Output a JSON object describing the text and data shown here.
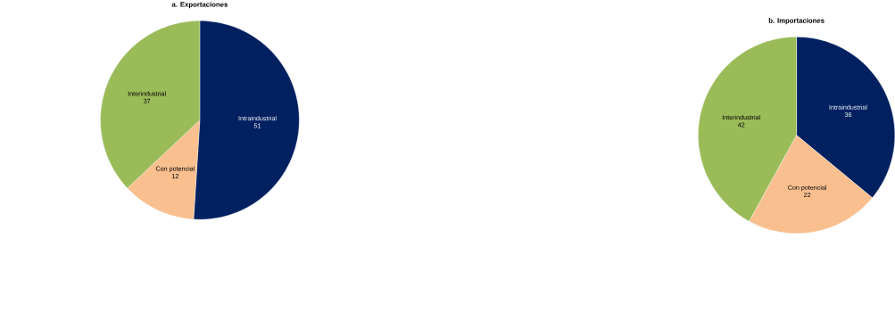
{
  "chart_data": [
    {
      "type": "pie",
      "title": "a. Exportaciones",
      "categories": [
        "Intraindustrial",
        "Con potencial",
        "Interindustrial"
      ],
      "values": [
        51,
        12,
        37
      ],
      "colors": [
        "#002060",
        "#f9bf8f",
        "#9bbb59"
      ],
      "data_labels": true
    },
    {
      "type": "pie",
      "title": "b. Importaciones",
      "categories": [
        "Intraindustrial",
        "Con potencial",
        "Interindustrial"
      ],
      "values": [
        36,
        22,
        42
      ],
      "colors": [
        "#002060",
        "#f9bf8f",
        "#9bbb59"
      ],
      "data_labels": true
    }
  ]
}
